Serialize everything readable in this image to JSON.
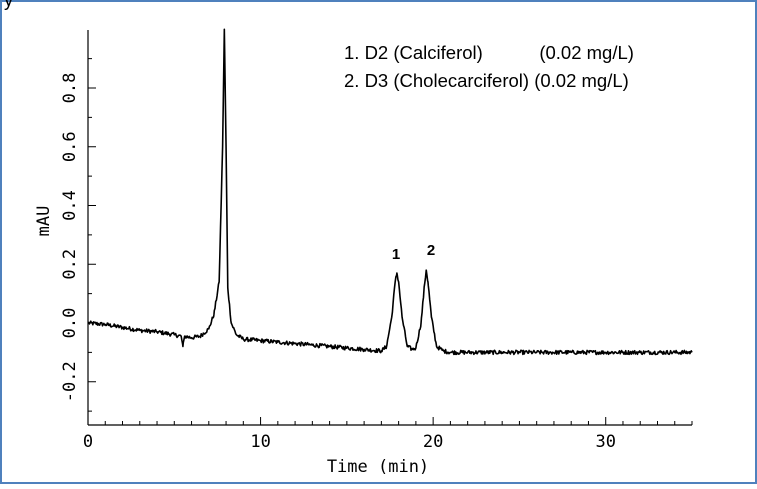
{
  "header_text": "y",
  "chart_data": {
    "type": "line",
    "title": "",
    "xlabel": "Time (min)",
    "ylabel": "mAU",
    "xlim": [
      0,
      35
    ],
    "ylim": [
      -0.3,
      1.0
    ],
    "x_ticks": [
      0,
      10,
      20,
      30
    ],
    "x_tick_labels": [
      "0",
      "10",
      "20",
      "30"
    ],
    "y_ticks": [
      -0.2,
      0.0,
      0.2,
      0.4,
      0.6,
      0.8
    ],
    "y_tick_labels": [
      "-0.2",
      "0.0",
      "0.2",
      "0.4",
      "0.6",
      "0.8"
    ],
    "grid": false,
    "legend": {
      "placement": "top-right",
      "entries": [
        "1. D2 (Calciferol)           (0.02 mg/L)",
        "2. D3 (Cholecarciferol) (0.02 mg/L)"
      ]
    },
    "peaks": [
      {
        "label": "1",
        "x": 17.9,
        "y": 0.17
      },
      {
        "label": "2",
        "x": 19.6,
        "y": 0.18
      }
    ],
    "series": [
      {
        "x": [
          0,
          1,
          2,
          3,
          4,
          5,
          5.4,
          5.5,
          5.6,
          6,
          6.5,
          7,
          7.3,
          7.6,
          7.8,
          7.9,
          8.0,
          8.1,
          8.3,
          8.6,
          9,
          10,
          11,
          12,
          13,
          14,
          15,
          16,
          17,
          17.3,
          17.6,
          17.8,
          17.9,
          18.0,
          18.2,
          18.5,
          18.8,
          19.0,
          19.3,
          19.5,
          19.6,
          19.7,
          19.9,
          20.2,
          20.6,
          21,
          22,
          24,
          26,
          28,
          30,
          32,
          34,
          35
        ],
        "y": [
          0.0,
          -0.005,
          -0.015,
          -0.025,
          -0.03,
          -0.04,
          -0.045,
          -0.08,
          -0.045,
          -0.05,
          -0.045,
          -0.02,
          0.03,
          0.14,
          0.6,
          1.0,
          0.6,
          0.12,
          0.0,
          -0.04,
          -0.055,
          -0.06,
          -0.065,
          -0.07,
          -0.075,
          -0.08,
          -0.085,
          -0.09,
          -0.095,
          -0.08,
          0.02,
          0.14,
          0.17,
          0.14,
          0.02,
          -0.08,
          -0.09,
          -0.085,
          0.0,
          0.13,
          0.18,
          0.14,
          0.02,
          -0.08,
          -0.095,
          -0.1,
          -0.1,
          -0.1,
          -0.1,
          -0.1,
          -0.1,
          -0.1,
          -0.1,
          -0.1
        ]
      }
    ]
  }
}
